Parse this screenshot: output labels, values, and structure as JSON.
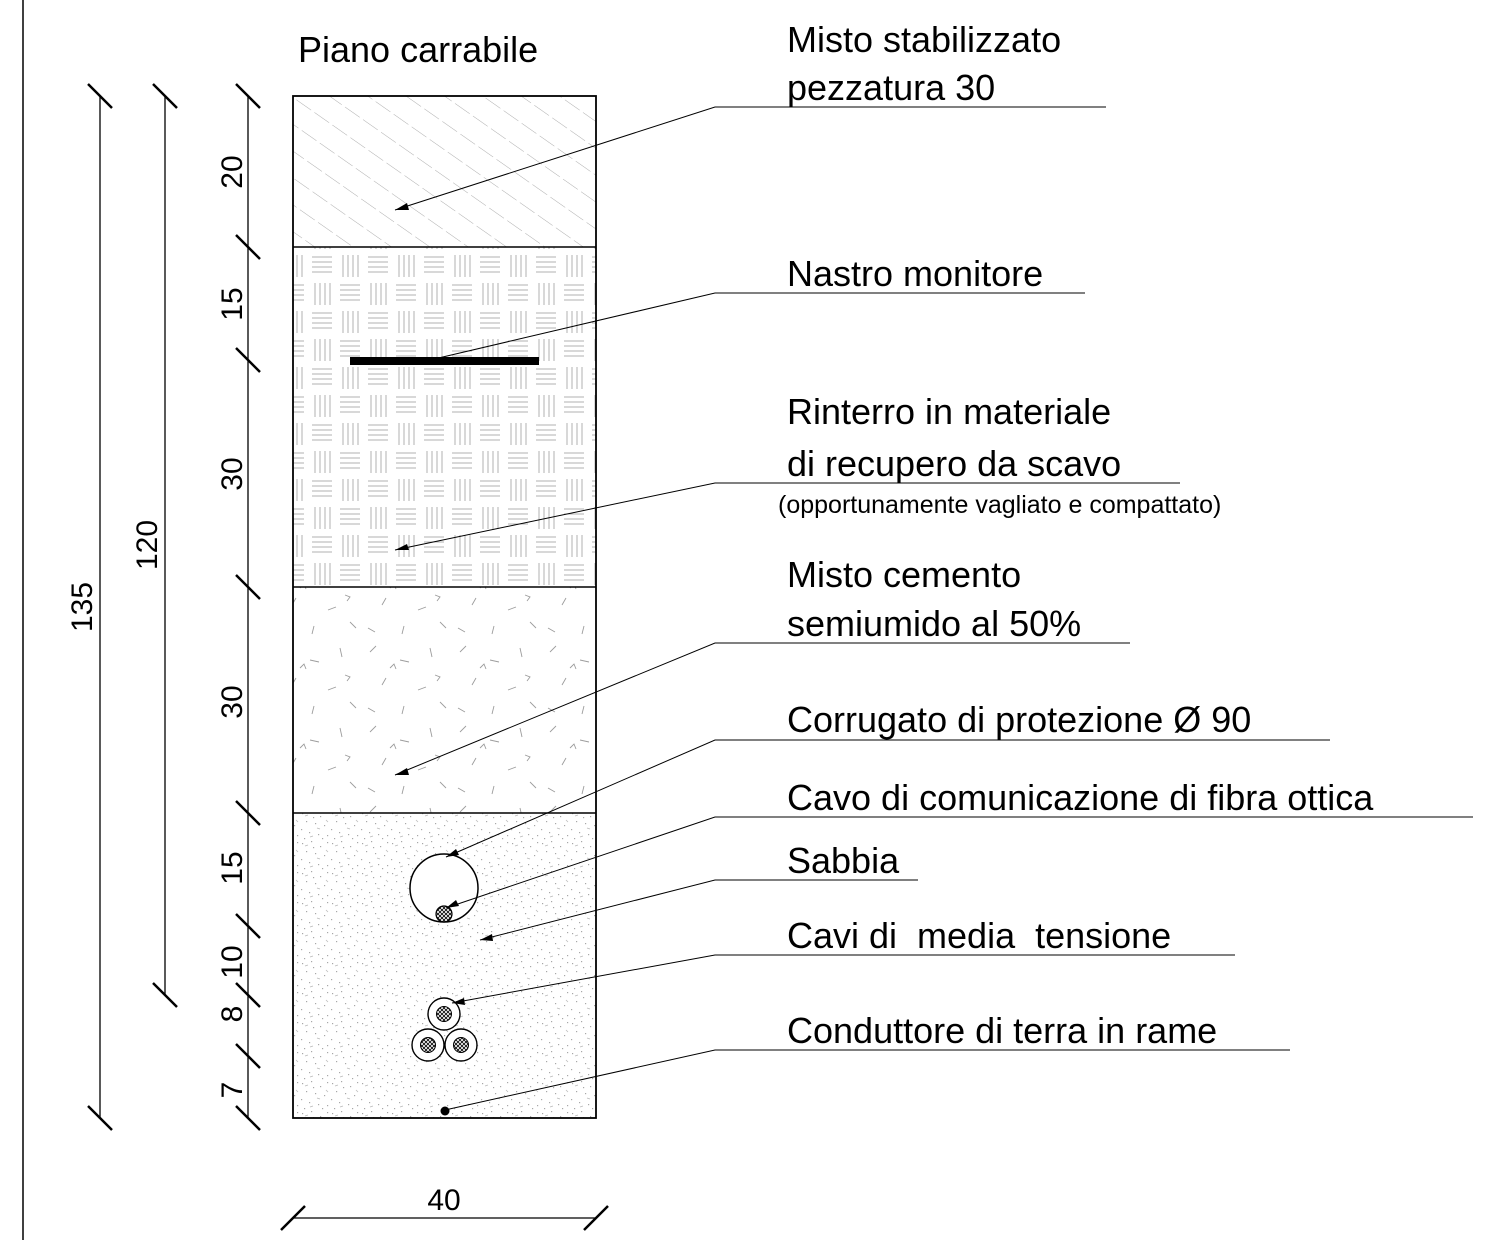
{
  "title": "Piano carrabile",
  "layers": [
    {
      "thickness": "20",
      "material": "Misto stabilizzato pezzatura 30"
    },
    {
      "thickness": "15",
      "material": "Rinterro in materiale di recupero da scavo"
    },
    {
      "thickness": "30",
      "material": "Rinterro in materiale di recupero da scavo"
    },
    {
      "thickness": "30",
      "material": "Misto cementato semiumido al 50%"
    },
    {
      "thickness": "15",
      "material": "Sabbia"
    },
    {
      "thickness": "10",
      "material": "Sabbia"
    },
    {
      "thickness": "8",
      "material": "Sabbia"
    },
    {
      "thickness": "7",
      "material": "Sabbia"
    }
  ],
  "dimensions": {
    "total_depth": "135",
    "partial_depth": "120",
    "width": "40"
  },
  "labels": {
    "misto_stabilizzato_line1": "Misto stabilizzato",
    "misto_stabilizzato_line2": "pezzatura 30",
    "nastro_monitore": "Nastro monitore",
    "rinterro_line1": "Rinterro in materiale",
    "rinterro_line2": "di recupero da scavo",
    "rinterro_note": "(opportunamente vagliato e compattato)",
    "misto_cemento_line1": "Misto cemento",
    "misto_cemento_line2": "semiumido al 50%",
    "corrugato": "Corrugato di protezione Ø 90",
    "fibra_ottica": "Cavo di comunicazione di fibra ottica",
    "sabbia": "Sabbia",
    "media_tensione": "Cavi di  media  tensione",
    "conduttore_terra": "Conduttore di terra in rame"
  }
}
